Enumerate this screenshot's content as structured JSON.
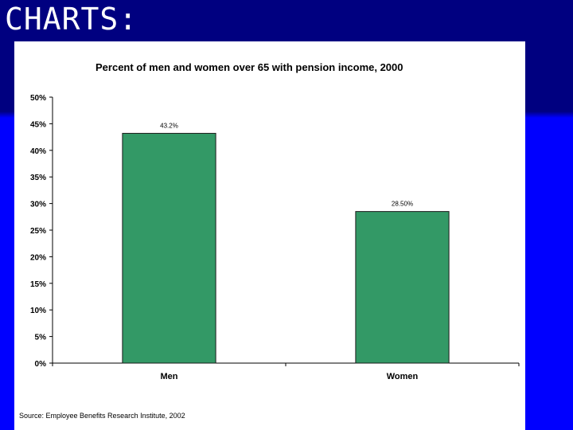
{
  "slide": {
    "title": "CHARTS:",
    "background_color": "#000080",
    "band_color": "#0000ff"
  },
  "chart_data": {
    "type": "bar",
    "title": "Percent of men and women over 65 with pension income, 2000",
    "categories": [
      "Men",
      "Women"
    ],
    "values": [
      43.2,
      28.5
    ],
    "data_labels": [
      "43.2%",
      "28.50%"
    ],
    "y_tick_labels": [
      "0%",
      "5%",
      "10%",
      "15%",
      "20%",
      "25%",
      "30%",
      "35%",
      "40%",
      "45%",
      "50%"
    ],
    "ylim": [
      0,
      50
    ],
    "y_unit": "%",
    "grid": false,
    "legend": false,
    "bar_color": "#339966",
    "source": "Source: Employee Benefits Research Institute, 2002"
  }
}
